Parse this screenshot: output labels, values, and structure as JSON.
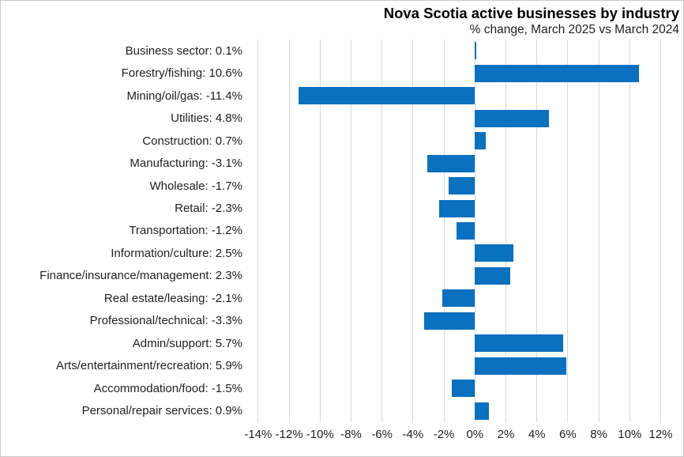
{
  "title": "Nova Scotia active businesses by industry",
  "subtitle": "% change, March 2025 vs March 2024",
  "colors": {
    "bar": "#0a70c0",
    "gridline": "#d9d9d9",
    "border": "#c9c9c9",
    "text": "#1f1f1f"
  },
  "chart_data": {
    "type": "bar",
    "orientation": "horizontal",
    "title": "Nova Scotia active businesses by industry",
    "subtitle": "% change, March 2025 vs March 2024",
    "grid": true,
    "legend": "none",
    "xlim": [
      -14.4,
      13.3
    ],
    "x_ticks": [
      -14,
      -12,
      -10,
      -8,
      -6,
      -4,
      -2,
      0,
      2,
      4,
      6,
      8,
      10,
      12
    ],
    "x_tick_labels": [
      "-14%",
      "-12%",
      "-10%",
      "-8%",
      "-6%",
      "-4%",
      "-2%",
      "0%",
      "2%",
      "4%",
      "6%",
      "8%",
      "10%",
      "12%"
    ],
    "categories": [
      "Business sector",
      "Forestry/fishing",
      "Mining/oil/gas",
      "Utilities",
      "Construction",
      "Manufacturing",
      "Wholesale",
      "Retail",
      "Transportation",
      "Information/culture",
      "Finance/insurance/management",
      "Real estate/leasing",
      "Professional/technical",
      "Admin/support",
      "Arts/entertainment/recreation",
      "Accommodation/food",
      "Personal/repair services"
    ],
    "values": [
      0.1,
      10.6,
      -11.4,
      4.8,
      0.7,
      -3.1,
      -1.7,
      -2.3,
      -1.2,
      2.5,
      2.3,
      -2.1,
      -3.3,
      5.7,
      5.9,
      -1.5,
      0.9
    ],
    "category_labels": [
      "Business sector: 0.1%",
      "Forestry/fishing: 10.6%",
      "Mining/oil/gas: -11.4%",
      "Utilities: 4.8%",
      "Construction: 0.7%",
      "Manufacturing: -3.1%",
      "Wholesale: -1.7%",
      "Retail: -2.3%",
      "Transportation: -1.2%",
      "Information/culture: 2.5%",
      "Finance/insurance/management: 2.3%",
      "Real estate/leasing: -2.1%",
      "Professional/technical: -3.3%",
      "Admin/support: 5.7%",
      "Arts/entertainment/recreation: 5.9%",
      "Accommodation/food: -1.5%",
      "Personal/repair services: 0.9%"
    ]
  }
}
